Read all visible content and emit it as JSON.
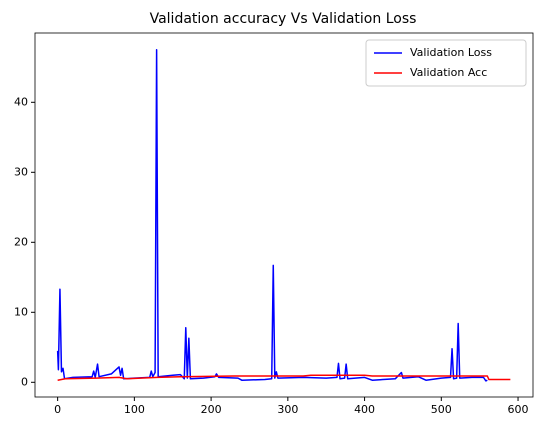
{
  "chart_data": {
    "type": "line",
    "title": "Validation accuracy Vs Validation Loss",
    "series": [
      {
        "name": "Validation Loss",
        "color": "#0000ff",
        "x": [
          0,
          1,
          3,
          5,
          7,
          9,
          20,
          45,
          47,
          49,
          52,
          54,
          70,
          80,
          82,
          84,
          86,
          100,
          120,
          122,
          124,
          127,
          129,
          131,
          150,
          160,
          165,
          167,
          169,
          171,
          173,
          190,
          205,
          207,
          210,
          235,
          240,
          270,
          279,
          281,
          283,
          285,
          287,
          320,
          350,
          364,
          366,
          368,
          374,
          376,
          378,
          400,
          410,
          440,
          448,
          450,
          470,
          480,
          500,
          512,
          514,
          516,
          520,
          522,
          524,
          540,
          555,
          558,
          560
        ],
        "values": [
          4.5,
          1.8,
          13.3,
          1.5,
          2.0,
          0.5,
          0.7,
          0.8,
          1.6,
          0.7,
          2.6,
          0.8,
          1.2,
          2.2,
          1.0,
          2.0,
          0.5,
          0.6,
          0.7,
          1.6,
          0.8,
          1.4,
          47.5,
          0.8,
          1.0,
          1.1,
          0.5,
          7.8,
          0.6,
          6.3,
          0.5,
          0.6,
          0.8,
          1.2,
          0.7,
          0.6,
          0.3,
          0.4,
          0.5,
          16.7,
          0.6,
          1.5,
          0.6,
          0.7,
          0.6,
          0.7,
          2.7,
          0.5,
          0.6,
          2.6,
          0.5,
          0.7,
          0.3,
          0.5,
          1.4,
          0.6,
          0.8,
          0.3,
          0.6,
          0.7,
          4.8,
          0.5,
          0.6,
          8.4,
          0.6,
          0.7,
          0.7,
          0.2,
          0.3
        ]
      },
      {
        "name": "Validation Acc",
        "color": "#ff0000",
        "x": [
          0,
          10,
          50,
          80,
          90,
          130,
          160,
          230,
          240,
          320,
          330,
          400,
          410,
          560,
          562,
          590
        ],
        "values": [
          0.3,
          0.5,
          0.6,
          0.7,
          0.5,
          0.7,
          0.8,
          0.9,
          0.9,
          0.9,
          1.0,
          1.0,
          0.9,
          0.9,
          0.4,
          0.4
        ]
      }
    ],
    "xlim": [
      -29.5,
      619.5
    ],
    "xticks": [
      0,
      100,
      200,
      300,
      400,
      500,
      600
    ],
    "ylim": [
      -2.1,
      49.9
    ],
    "yticks": [
      0,
      10,
      20,
      30,
      40
    ],
    "legend": "upper right"
  }
}
